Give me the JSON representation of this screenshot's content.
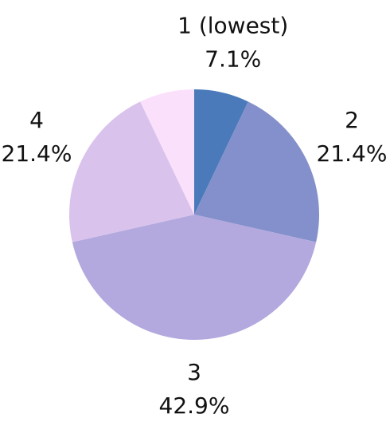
{
  "chart_data": {
    "type": "pie",
    "categories": [
      "1 (lowest)",
      "2",
      "3",
      "4",
      null
    ],
    "values": [
      7.1,
      21.4,
      42.9,
      21.4,
      7.1
    ],
    "value_labels": [
      "7.1%",
      "21.4%",
      "42.9%",
      "21.4%",
      null
    ],
    "colors": [
      "#4a7aba",
      "#8490cb",
      "#b3a9de",
      "#d9c3ec",
      "#fbe0fb"
    ]
  }
}
